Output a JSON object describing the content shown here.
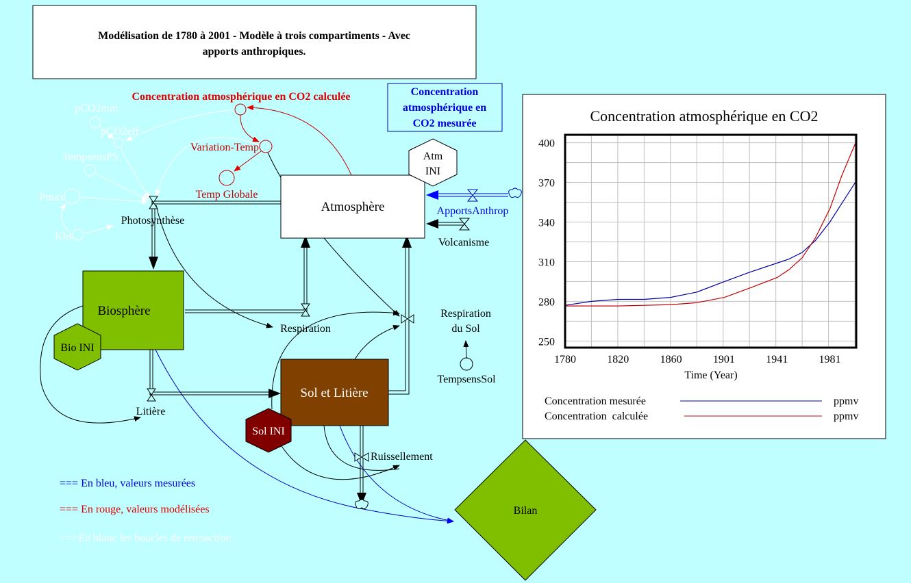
{
  "title": {
    "line1": "Modélisation de 1780 à 2001 - Modèle à trois compartiments - Avec",
    "line2": "apports anthropiques."
  },
  "variables": {
    "conc_calc": "Concentration atmosphérique en CO2 calculée",
    "conc_mes": {
      "line1": "Concentration",
      "line2": "atmosphérique en",
      "line3": "CO2 mesurée"
    },
    "variation_temp": "Variation-Temp",
    "temp_globale": "Temp Globale",
    "pco2min": "pCO2min",
    "pco2eff": "pCO2eff",
    "tempsensps": "TempsensPS",
    "pmax": "Pmax",
    "khs": "Khs",
    "tempsenssol": "TempsensSol"
  },
  "stocks": {
    "atmosphere": "Atmosphère",
    "biosphere": "Biosphère",
    "sol": "Sol et Litière",
    "bilan": "Bilan"
  },
  "initials": {
    "atm": {
      "line1": "Atm",
      "line2": "INI"
    },
    "bio": "Bio INI",
    "sol": "Sol INI"
  },
  "flows": {
    "photosynthese": "Photosynthèse",
    "respiration": "Respiration",
    "litiere": "Litière",
    "respiration_sol": {
      "line1": "Respiration",
      "line2": "du Sol"
    },
    "ruissellement": "Ruissellement",
    "apports": "ApportsAnthrop",
    "volcanisme": "Volcanisme"
  },
  "legend_notes": {
    "blue": "=== En bleu, valeurs mesurées",
    "red": "=== En rouge, valeurs modélisées",
    "white": "===En blanc les boucles de retroaction."
  },
  "colors": {
    "background": "#C0FFFF",
    "measured": "#0000A0",
    "calculated": "#C00000",
    "biosphere": "#80BF00",
    "sol": "#804000",
    "sol_ini": "#800000"
  },
  "chart_data": {
    "type": "line",
    "title": "Concentration atmosphérique en CO2",
    "xlabel": "Time (Year)",
    "ylabel": "",
    "xlim": [
      1780,
      2001
    ],
    "ylim": [
      245,
      406
    ],
    "xticks": [
      1780,
      1820,
      1860,
      1901,
      1941,
      1981
    ],
    "yticks": [
      250,
      280,
      310,
      340,
      370,
      400
    ],
    "grid": true,
    "legend_position": "bottom",
    "series": [
      {
        "name": "Concentration mesurée",
        "unit": "ppmv",
        "color": "#0000A0",
        "x": [
          1780,
          1800,
          1820,
          1840,
          1860,
          1880,
          1901,
          1920,
          1941,
          1950,
          1960,
          1970,
          1981,
          1990,
          2001
        ],
        "y": [
          277,
          280,
          281.5,
          281.5,
          283,
          287,
          295,
          302,
          309,
          312,
          317,
          326,
          340,
          354,
          371
        ]
      },
      {
        "name": "Concentration  calculée",
        "unit": "ppmv",
        "color": "#C00000",
        "x": [
          1780,
          1820,
          1840,
          1860,
          1880,
          1901,
          1920,
          1941,
          1950,
          1960,
          1970,
          1981,
          1990,
          2001
        ],
        "y": [
          276.5,
          276.5,
          277,
          277.5,
          279,
          283,
          290,
          298,
          304,
          313,
          328,
          350,
          375,
          401
        ]
      }
    ]
  }
}
